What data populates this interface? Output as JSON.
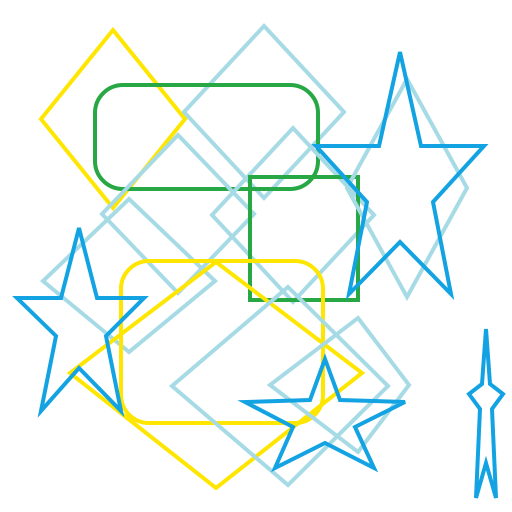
{
  "background": "#ffffff",
  "palette": {
    "yellow": "#ffe600",
    "green": "#27a844",
    "light_blue": "#a6dbe6",
    "blue": "#13a3e3"
  },
  "shapes": [
    {
      "id": "yellow-diamond-top-left",
      "type": "diamond",
      "color": "light"
    },
    {
      "id": "light-blue-diamond-top-center",
      "type": "diamond"
    },
    {
      "id": "green-rounded-rectangle-top",
      "type": "rounded-rectangle"
    },
    {
      "id": "light-blue-diamond-center",
      "type": "diamond"
    },
    {
      "id": "light-blue-diamond-left",
      "type": "diamond"
    },
    {
      "id": "green-square-center-right",
      "type": "square"
    },
    {
      "id": "light-blue-diamond-right",
      "type": "diamond"
    },
    {
      "id": "blue-star-top-right",
      "type": "star"
    },
    {
      "id": "yellow-rounded-square-center",
      "type": "rounded-square"
    },
    {
      "id": "yellow-diamond-bottom-center",
      "type": "diamond"
    },
    {
      "id": "light-blue-diamond-bottom-center",
      "type": "diamond"
    },
    {
      "id": "light-blue-diamond-bottom-right",
      "type": "diamond"
    },
    {
      "id": "blue-star-left",
      "type": "star"
    },
    {
      "id": "blue-star-bottom-center",
      "type": "star"
    },
    {
      "id": "blue-narrow-star-right-edge",
      "type": "star"
    }
  ]
}
